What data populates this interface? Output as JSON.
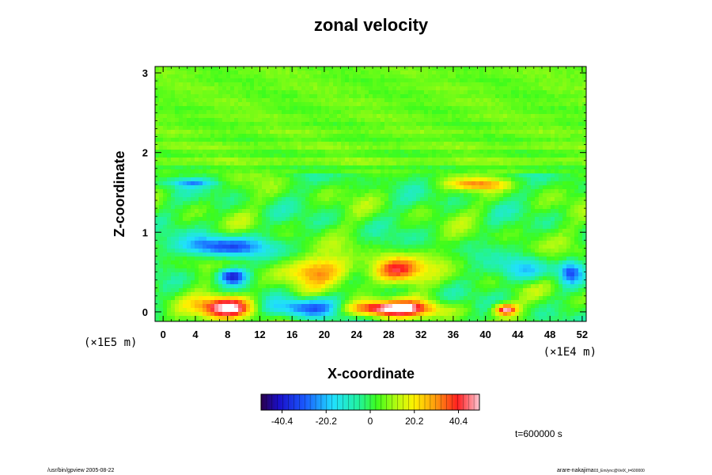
{
  "chart_data": {
    "type": "heatmap",
    "title": "zonal velocity",
    "xlabel": "X-coordinate",
    "ylabel": "Z-coordinate",
    "x_unit": "(×1E4 m)",
    "y_unit": "(×1E5 m)",
    "xlim": [
      -1,
      52.5
    ],
    "ylim": [
      -0.12,
      3.08
    ],
    "xticks": [
      0,
      4,
      8,
      12,
      16,
      20,
      24,
      28,
      32,
      36,
      40,
      44,
      48,
      52
    ],
    "yticks": [
      0,
      1,
      2,
      3
    ],
    "colorbar": {
      "vmin": -50,
      "vmax": 50,
      "ticks": [
        "-40.4",
        "-20.2",
        "0",
        "20.2",
        "40.4"
      ],
      "tick_values": [
        -40.4,
        -20.2,
        0,
        20.2,
        40.4
      ]
    },
    "time_label": "t=600000 s",
    "features": [
      {
        "x": 8,
        "z": 0.06,
        "rx": 3.5,
        "rz": 0.14,
        "value": 52
      },
      {
        "x": 27.5,
        "z": 0.04,
        "rx": 6.2,
        "rz": 0.1,
        "value": 52
      },
      {
        "x": 42.5,
        "z": 0.03,
        "rx": 1.4,
        "rz": 0.07,
        "value": 46
      },
      {
        "x": 7.5,
        "z": 0.82,
        "rx": 5,
        "rz": 0.13,
        "value": -36
      },
      {
        "x": 8.5,
        "z": 0.45,
        "rx": 1.8,
        "rz": 0.1,
        "value": -45
      },
      {
        "x": 18.5,
        "z": 0.05,
        "rx": 5,
        "rz": 0.12,
        "value": -38
      },
      {
        "x": 29,
        "z": 0.52,
        "rx": 3.2,
        "rz": 0.17,
        "value": 40
      },
      {
        "x": 19,
        "z": 0.52,
        "rx": 4.5,
        "rz": 0.18,
        "value": 26
      },
      {
        "x": 39,
        "z": 1.6,
        "rx": 3.8,
        "rz": 0.07,
        "value": 24
      },
      {
        "x": 45,
        "z": 0.52,
        "rx": 3.2,
        "rz": 0.14,
        "value": -20
      },
      {
        "x": 50.5,
        "z": 0.5,
        "rx": 1.4,
        "rz": 0.15,
        "value": -28
      },
      {
        "x": 3.5,
        "z": 1.62,
        "rx": 3.2,
        "rz": 0.05,
        "value": -20
      }
    ]
  },
  "footer": {
    "left": "/usr/bin/gpview 2005-08-22",
    "right_main": "arare-nakajima",
    "right_sub": "03_Em/ync@VelX_t=600000"
  }
}
